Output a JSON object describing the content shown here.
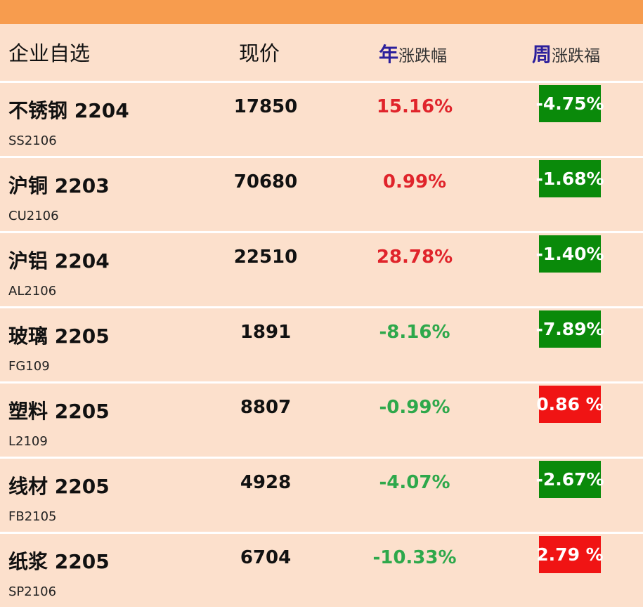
{
  "header": {
    "name": "企业自选",
    "price": "现价",
    "year_prefix": "年",
    "year_suffix": "涨跌幅",
    "week_prefix": "周",
    "week_suffix": "涨跌福"
  },
  "colors": {
    "topbar": "#f79c4e",
    "background": "#fce0cc",
    "up_text": "#e0242b",
    "down_text": "#2ea84b",
    "week_negative_bg": "#0a8a0a",
    "week_positive_bg": "#f01414",
    "header_accent": "#2c1f9c"
  },
  "rows": [
    {
      "name": "不锈钢 2204",
      "code": "SS2106",
      "price": "17850",
      "year": "15.16%",
      "week": "-4.75%"
    },
    {
      "name": "沪铜 2203",
      "code": "CU2106",
      "price": "70680",
      "year": "0.99%",
      "week": "-1.68%"
    },
    {
      "name": "沪铝 2204",
      "code": "AL2106",
      "price": "22510",
      "year": "28.78%",
      "week": "-1.40%"
    },
    {
      "name": "玻璃 2205",
      "code": "FG109",
      "price": "1891",
      "year": "-8.16%",
      "week": "-7.89%"
    },
    {
      "name": "塑料 2205",
      "code": "L2109",
      "price": "8807",
      "year": "-0.99%",
      "week": "0.86 %"
    },
    {
      "name": "线材 2205",
      "code": "FB2105",
      "price": "4928",
      "year": "-4.07%",
      "week": "-2.67%"
    },
    {
      "name": "纸浆 2205",
      "code": "SP2106",
      "price": "6704",
      "year": "-10.33%",
      "week": "2.79 %"
    }
  ]
}
